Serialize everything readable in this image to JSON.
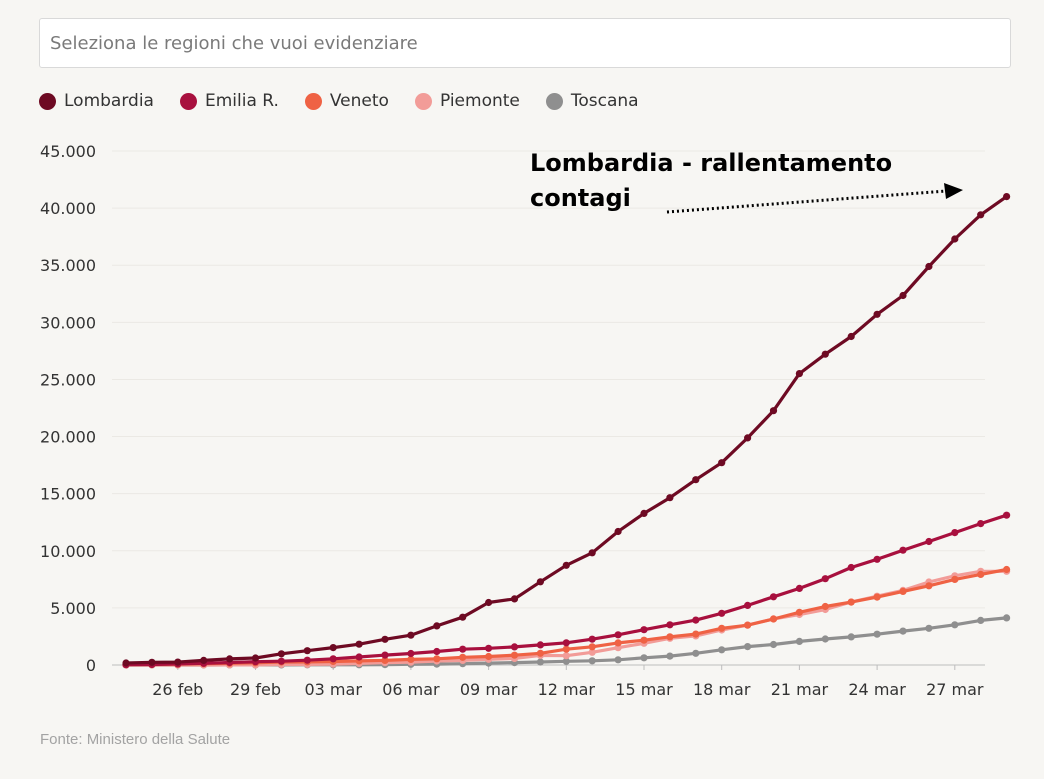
{
  "search": {
    "placeholder": "Seleziona le regioni che vuoi evidenziare"
  },
  "source": "Fonte: Ministero della Salute",
  "annotation": {
    "line1": "Lombardia - rallentamento",
    "line2": "contagi"
  },
  "chart_data": {
    "type": "line",
    "x": [
      "24 feb",
      "25 feb",
      "26 feb",
      "27 feb",
      "28 feb",
      "29 feb",
      "01 mar",
      "02 mar",
      "03 mar",
      "04 mar",
      "05 mar",
      "06 mar",
      "07 mar",
      "08 mar",
      "09 mar",
      "10 mar",
      "11 mar",
      "12 mar",
      "13 mar",
      "14 mar",
      "15 mar",
      "16 mar",
      "17 mar",
      "18 mar",
      "19 mar",
      "20 mar",
      "21 mar",
      "22 mar",
      "23 mar",
      "24 mar",
      "25 mar",
      "26 mar",
      "27 mar",
      "28 mar",
      "29 mar"
    ],
    "x_ticks": [
      "26 feb",
      "29 feb",
      "03 mar",
      "06 mar",
      "09 mar",
      "12 mar",
      "15 mar",
      "18 mar",
      "21 mar",
      "24 mar",
      "27 mar"
    ],
    "y_ticks": [
      "0",
      "5.000",
      "10.000",
      "15.000",
      "20.000",
      "25.000",
      "30.000",
      "35.000",
      "40.000",
      "45.000"
    ],
    "ylim": [
      0,
      45000
    ],
    "grid": true,
    "legend_position": "top-left",
    "series": [
      {
        "name": "Lombardia",
        "color": "#6e0a23",
        "values": [
          172,
          240,
          258,
          403,
          531,
          615,
          984,
          1254,
          1520,
          1820,
          2251,
          2612,
          3420,
          4189,
          5469,
          5791,
          7280,
          8725,
          9820,
          11685,
          13272,
          14649,
          16220,
          17713,
          19884,
          22264,
          25515,
          27206,
          28761,
          30703,
          32346,
          34889,
          37298,
          39415,
          41007
        ]
      },
      {
        "name": "Emilia R.",
        "color": "#a8103e",
        "values": [
          26,
          47,
          97,
          145,
          217,
          285,
          335,
          420,
          544,
          698,
          870,
          1011,
          1180,
          1386,
          1463,
          1586,
          1758,
          1947,
          2263,
          2644,
          3093,
          3522,
          3931,
          4525,
          5214,
          5968,
          6705,
          7555,
          8535,
          9254,
          10054,
          10816,
          11588,
          12383,
          13119
        ]
      },
      {
        "name": "Veneto",
        "color": "#ef6244",
        "values": [
          33,
          43,
          71,
          111,
          151,
          191,
          263,
          273,
          307,
          360,
          407,
          488,
          543,
          670,
          744,
          856,
          1023,
          1384,
          1595,
          1937,
          2172,
          2473,
          2704,
          3214,
          3484,
          4031,
          4617,
          5122,
          5505,
          5948,
          6442,
          6935,
          7497,
          7930,
          8358
        ]
      },
      {
        "name": "Piemonte",
        "color": "#f29c98",
        "values": [
          0,
          0,
          3,
          3,
          11,
          11,
          51,
          56,
          82,
          143,
          207,
          243,
          350,
          401,
          501,
          580,
          840,
          815,
          1111,
          1516,
          1897,
          2341,
          2552,
          3061,
          3506,
          4036,
          4420,
          4861,
          5515,
          6024,
          6534,
          7268,
          7809,
          8206,
          8206
        ]
      },
      {
        "name": "Toscana",
        "color": "#8f8f8f",
        "values": [
          0,
          2,
          2,
          2,
          11,
          11,
          13,
          19,
          19,
          19,
          38,
          61,
          79,
          113,
          166,
          208,
          264,
          320,
          364,
          454,
          630,
          781,
          1025,
          1330,
          1612,
          1793,
          2063,
          2277,
          2461,
          2699,
          2972,
          3217,
          3522,
          3906,
          4122
        ]
      }
    ]
  }
}
